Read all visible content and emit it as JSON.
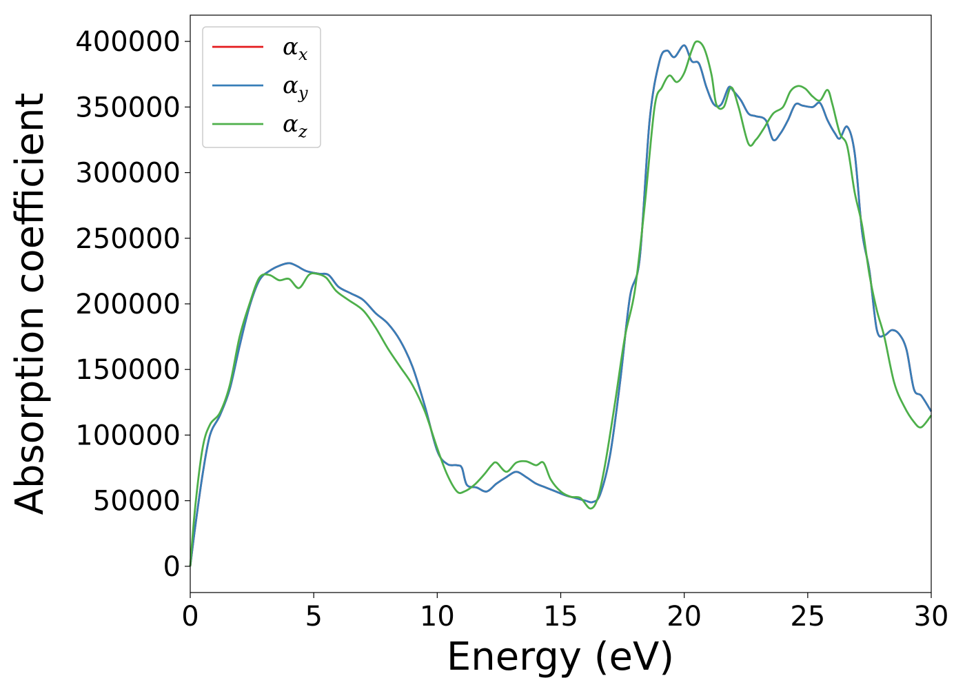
{
  "chart_data": {
    "type": "line",
    "title": "",
    "xlabel": "Energy (eV)",
    "ylabel": "Absorption coefficient",
    "xlim": [
      0,
      30
    ],
    "ylim": [
      -20000,
      420000
    ],
    "xticks": [
      0,
      5,
      10,
      15,
      20,
      25,
      30
    ],
    "yticks": [
      0,
      50000,
      100000,
      150000,
      200000,
      250000,
      300000,
      350000,
      400000
    ],
    "grid": false,
    "legend_position": "top-left",
    "series": [
      {
        "name": "α_x",
        "color": "#e41a1c",
        "x": [
          0,
          0.2,
          0.5,
          0.8,
          1.2,
          1.6,
          2,
          2.4,
          2.8,
          3.2,
          3.6,
          4,
          4.3,
          4.7,
          5.2,
          5.6,
          6,
          6.5,
          7,
          7.5,
          8,
          8.5,
          9,
          9.5,
          10,
          10.4,
          10.8,
          11,
          11.2,
          11.6,
          12,
          12.4,
          12.8,
          13.2,
          13.6,
          14,
          14.4,
          14.8,
          15.2,
          15.6,
          16,
          16.3,
          16.6,
          17,
          17.4,
          17.8,
          18.2,
          18.6,
          19,
          19.3,
          19.6,
          20,
          20.3,
          20.6,
          20.9,
          21.2,
          21.5,
          21.8,
          22,
          22.3,
          22.6,
          22.9,
          23.3,
          23.6,
          23.9,
          24.2,
          24.5,
          24.8,
          25.2,
          25.5,
          25.8,
          26.1,
          26.3,
          26.6,
          26.9,
          27.2,
          27.5,
          27.8,
          28.1,
          28.4,
          28.7,
          29,
          29.3,
          29.6,
          30
        ],
        "values": [
          0,
          30000,
          70000,
          100000,
          115000,
          135000,
          168000,
          198000,
          218000,
          225000,
          229000,
          231000,
          229000,
          225000,
          223000,
          222000,
          213000,
          208000,
          203000,
          193000,
          185000,
          172000,
          152000,
          122000,
          88000,
          78000,
          77000,
          75000,
          62000,
          60000,
          57000,
          63000,
          68000,
          72000,
          68000,
          63000,
          60000,
          57000,
          54000,
          52000,
          50000,
          49000,
          55000,
          85000,
          140000,
          205000,
          235000,
          340000,
          385000,
          393000,
          388000,
          397000,
          385000,
          383000,
          365000,
          352000,
          352000,
          365000,
          362000,
          355000,
          345000,
          343000,
          340000,
          325000,
          330000,
          340000,
          352000,
          351000,
          350000,
          353000,
          340000,
          330000,
          326000,
          335000,
          315000,
          255000,
          225000,
          180000,
          176000,
          180000,
          177000,
          165000,
          135000,
          130000,
          118000
        ]
      },
      {
        "name": "α_y",
        "color": "#377eb8",
        "x": [
          0,
          0.2,
          0.5,
          0.8,
          1.2,
          1.6,
          2,
          2.4,
          2.8,
          3.2,
          3.6,
          4,
          4.3,
          4.7,
          5.2,
          5.6,
          6,
          6.5,
          7,
          7.5,
          8,
          8.5,
          9,
          9.5,
          10,
          10.4,
          10.8,
          11,
          11.2,
          11.6,
          12,
          12.4,
          12.8,
          13.2,
          13.6,
          14,
          14.4,
          14.8,
          15.2,
          15.6,
          16,
          16.3,
          16.6,
          17,
          17.4,
          17.8,
          18.2,
          18.6,
          19,
          19.3,
          19.6,
          20,
          20.3,
          20.6,
          20.9,
          21.2,
          21.5,
          21.8,
          22,
          22.3,
          22.6,
          22.9,
          23.3,
          23.6,
          23.9,
          24.2,
          24.5,
          24.8,
          25.2,
          25.5,
          25.8,
          26.1,
          26.3,
          26.6,
          26.9,
          27.2,
          27.5,
          27.8,
          28.1,
          28.4,
          28.7,
          29,
          29.3,
          29.6,
          30
        ],
        "values": [
          0,
          30000,
          70000,
          100000,
          115000,
          135000,
          168000,
          198000,
          218000,
          225000,
          229000,
          231000,
          229000,
          225000,
          223000,
          222000,
          213000,
          208000,
          203000,
          193000,
          185000,
          172000,
          152000,
          122000,
          88000,
          78000,
          77000,
          75000,
          62000,
          60000,
          57000,
          63000,
          68000,
          72000,
          68000,
          63000,
          60000,
          57000,
          54000,
          52000,
          50000,
          49000,
          55000,
          85000,
          140000,
          205000,
          235000,
          340000,
          385000,
          393000,
          388000,
          397000,
          385000,
          383000,
          365000,
          352000,
          352000,
          365000,
          362000,
          355000,
          345000,
          343000,
          340000,
          325000,
          330000,
          340000,
          352000,
          351000,
          350000,
          353000,
          340000,
          330000,
          326000,
          335000,
          315000,
          255000,
          225000,
          180000,
          176000,
          180000,
          177000,
          165000,
          135000,
          130000,
          118000
        ]
      },
      {
        "name": "α_z",
        "color": "#4daf4a",
        "x": [
          0,
          0.2,
          0.5,
          0.8,
          1.2,
          1.6,
          2,
          2.4,
          2.8,
          3.2,
          3.6,
          4,
          4.4,
          4.8,
          5.1,
          5.5,
          5.9,
          6.4,
          7,
          7.5,
          8,
          8.5,
          9,
          9.5,
          10,
          10.4,
          10.8,
          11.1,
          11.5,
          11.9,
          12.2,
          12.4,
          12.8,
          13.2,
          13.6,
          14,
          14.3,
          14.6,
          15,
          15.4,
          15.8,
          16.2,
          16.5,
          16.8,
          17.2,
          17.6,
          18,
          18.4,
          18.8,
          19.1,
          19.4,
          19.7,
          20,
          20.3,
          20.5,
          20.8,
          21.1,
          21.3,
          21.6,
          21.9,
          22.2,
          22.6,
          22.9,
          23.2,
          23.6,
          24,
          24.3,
          24.6,
          24.9,
          25.2,
          25.5,
          25.8,
          26,
          26.3,
          26.6,
          26.9,
          27.2,
          27.5,
          27.8,
          28.1,
          28.5,
          28.9,
          29.3,
          29.6,
          30
        ],
        "values": [
          0,
          45000,
          90000,
          108000,
          117000,
          138000,
          175000,
          200000,
          220000,
          222000,
          218000,
          219000,
          212000,
          222000,
          223000,
          220000,
          210000,
          203000,
          195000,
          182000,
          166000,
          152000,
          138000,
          118000,
          90000,
          70000,
          57000,
          57000,
          62000,
          70000,
          77000,
          79000,
          72000,
          79000,
          80000,
          77000,
          79000,
          66000,
          57000,
          53000,
          52000,
          44000,
          52000,
          78000,
          125000,
          175000,
          210000,
          275000,
          350000,
          365000,
          374000,
          369000,
          376000,
          393000,
          400000,
          395000,
          375000,
          352000,
          350000,
          365000,
          350000,
          322000,
          325000,
          333000,
          345000,
          350000,
          362000,
          366000,
          364000,
          358000,
          355000,
          363000,
          352000,
          330000,
          320000,
          285000,
          260000,
          222000,
          195000,
          175000,
          140000,
          122000,
          110000,
          106000,
          115000
        ]
      }
    ]
  }
}
